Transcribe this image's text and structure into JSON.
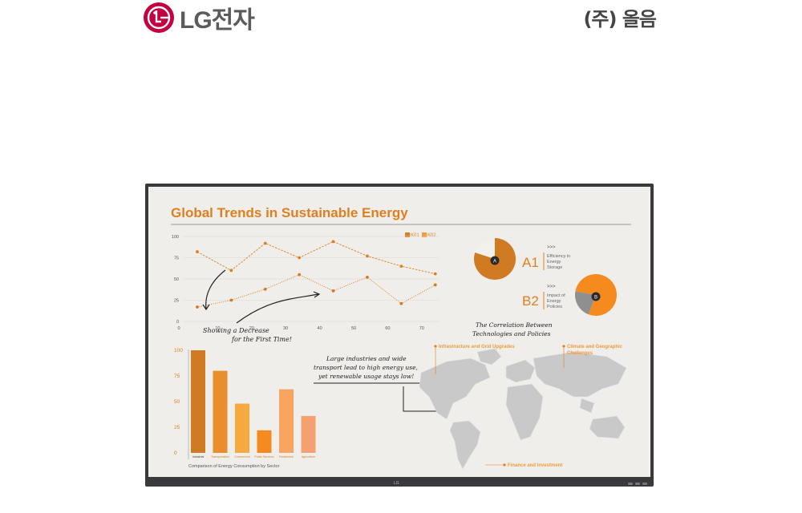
{
  "header": {
    "brand_left": "LG전자",
    "brand_right": "(주) 올음"
  },
  "screen": {
    "title": "Global Trends in Sustainable Energy",
    "annotation_decrease_line1": "Showing a Decrease",
    "annotation_decrease_line2": "for the First Time!",
    "annotation_industry_line1": "Large industries and wide",
    "annotation_industry_line2": "transport lead to high energy use,",
    "annotation_industry_line3": "yet renewable usage stays low!",
    "correlation_line1": "The Correlation Between",
    "correlation_line2": "Technologies and Policies",
    "pie_a": {
      "label": "A",
      "code": "A1",
      "desc1": "Efficiency in",
      "desc2": "Energy",
      "desc3": "Storage",
      "arrows": ">>>"
    },
    "pie_b": {
      "label": "B",
      "code": "B2",
      "desc1": "Impact of",
      "desc2": "Energy",
      "desc3": "Policies",
      "arrows": ">>>"
    },
    "map_labels": {
      "infrastructure": "Infrastructure and Grid Upgrades",
      "climate1": "Climate and Geographic",
      "climate2": "Challenges",
      "finance": "Finance and Investment"
    },
    "bezel_logo": "LG"
  },
  "colors": {
    "accent": "#e07f1f",
    "title": "#e07f1f",
    "bezel": "#3a3a3c",
    "screen_bg": "#efeeeb",
    "map": "#c9c9c9"
  },
  "chart_data": [
    {
      "type": "line",
      "title": "",
      "xlabel": "",
      "ylabel": "",
      "xlim": [
        0,
        75
      ],
      "ylim": [
        0,
        100
      ],
      "x_ticks": [
        0,
        10,
        20,
        30,
        40,
        50,
        60,
        70
      ],
      "y_ticks": [
        0,
        25,
        50,
        75,
        100
      ],
      "grid": true,
      "legend": "top-right",
      "series": [
        {
          "name": "K01",
          "style": "dashed",
          "x": [
            4,
            14,
            24,
            34,
            44,
            54,
            64,
            74
          ],
          "y": [
            82,
            60,
            92,
            75,
            94,
            77,
            65,
            56
          ]
        },
        {
          "name": "K02",
          "style": "dotted",
          "x": [
            4,
            14,
            24,
            34,
            44,
            54,
            64,
            74
          ],
          "y": [
            17,
            25,
            38,
            55,
            36,
            52,
            21,
            43
          ]
        }
      ]
    },
    {
      "type": "bar",
      "title": "",
      "caption": "Comparison of Energy Consumption by Sector",
      "categories": [
        "Industrial",
        "Transportation",
        "Commercial",
        "Public Services",
        "Residential",
        "Agriculture"
      ],
      "values": [
        100,
        80,
        48,
        22,
        62,
        36
      ],
      "colors": [
        "#d07a22",
        "#e88f2b",
        "#f5a93e",
        "#f58a1f",
        "#f7a560",
        "#f5a070"
      ],
      "ylim": [
        0,
        100
      ],
      "y_ticks": [
        0,
        25,
        50,
        75,
        100
      ]
    },
    {
      "type": "pie",
      "title": "",
      "label": "A",
      "values": [
        80,
        20
      ],
      "colors": [
        "#d07a22",
        "#f2f0ed"
      ]
    },
    {
      "type": "pie",
      "title": "",
      "label": "B",
      "values": [
        78,
        22
      ],
      "colors": [
        "#f58a1f",
        "#8f8f8f"
      ]
    }
  ]
}
